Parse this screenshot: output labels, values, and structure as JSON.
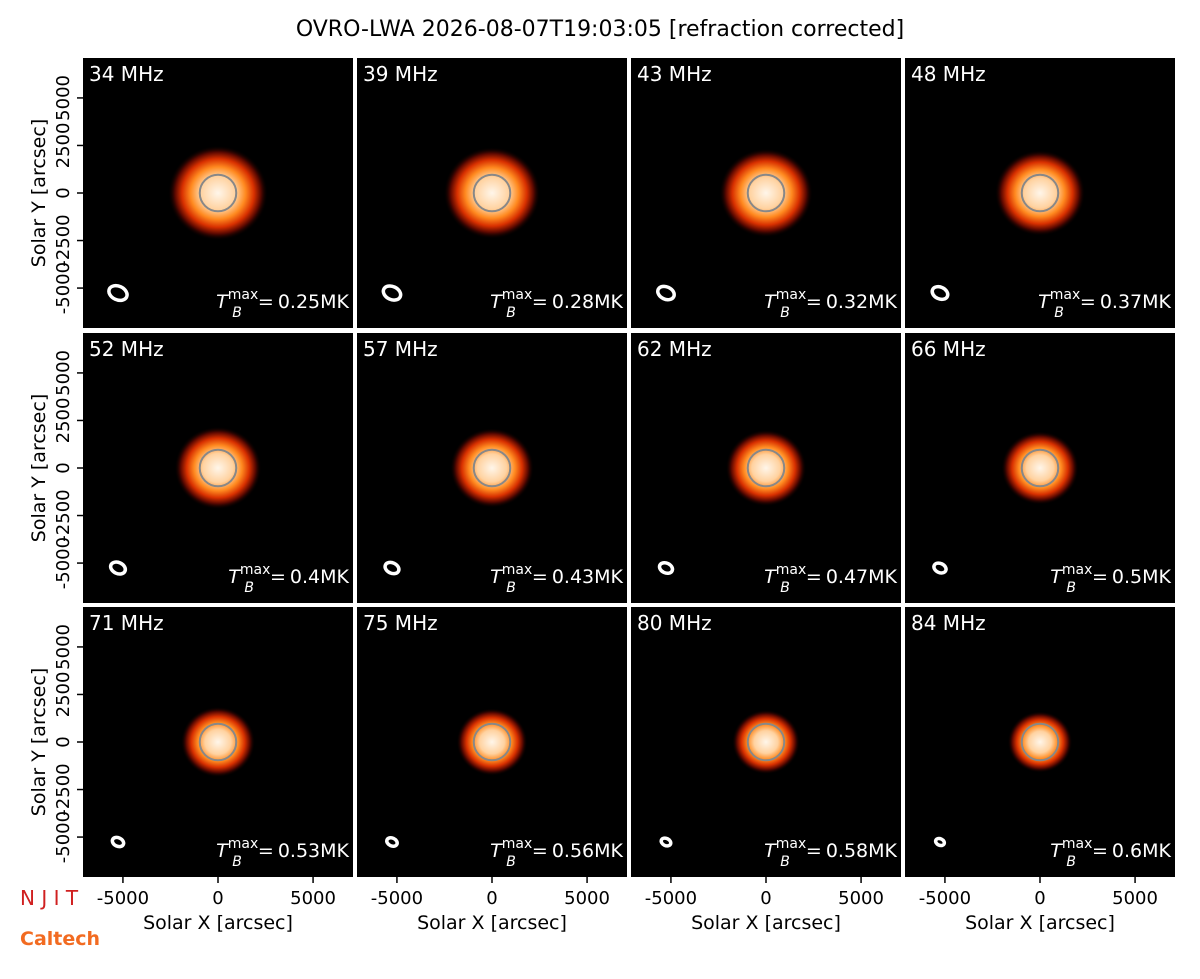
{
  "chart_data": {
    "type": "image-grid",
    "title": "OVRO-LWA 2026-08-07T19:03:05 [refraction corrected]",
    "xlabel": "Solar X [arcsec]",
    "ylabel": "Solar Y [arcsec]",
    "xlim": [
      -7100,
      7100
    ],
    "ylim": [
      -7100,
      7100
    ],
    "xticks": [
      -5000,
      0,
      5000
    ],
    "yticks": [
      -5000,
      -2500,
      0,
      2500,
      5000
    ],
    "tb_symbol": {
      "base": "T",
      "sub": "B",
      "sup": "max",
      "eq": "="
    },
    "panels": [
      "34 MHz",
      "39 MHz",
      "43 MHz",
      "48 MHz",
      "52 MHz",
      "57 MHz",
      "62 MHz",
      "66 MHz",
      "71 MHz",
      "75 MHz",
      "80 MHz",
      "84 MHz"
    ],
    "values": [
      0.25,
      0.28,
      0.32,
      0.37,
      0.4,
      0.43,
      0.47,
      0.5,
      0.53,
      0.56,
      0.58,
      0.6
    ],
    "value_labels": [
      "0.25MK",
      "0.28MK",
      "0.32MK",
      "0.37MK",
      "0.4MK",
      "0.43MK",
      "0.47MK",
      "0.5MK",
      "0.53MK",
      "0.56MK",
      "0.58MK",
      "0.6MK"
    ],
    "logos": [
      "N J I T",
      "Caltech"
    ]
  }
}
